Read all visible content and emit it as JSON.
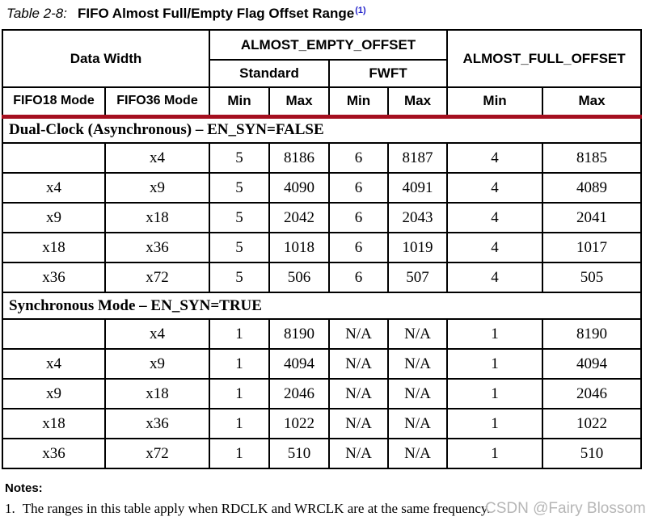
{
  "title": {
    "label": "Table 2-8:",
    "text": "FIFO Almost Full/Empty Flag Offset Range",
    "footnote_ref": "(1)"
  },
  "table": {
    "header": {
      "data_width": "Data Width",
      "almost_empty": "ALMOST_EMPTY_OFFSET",
      "almost_full": "ALMOST_FULL_OFFSET",
      "standard": "Standard",
      "fwft": "FWFT",
      "col_fifo18": "FIFO18 Mode",
      "col_fifo36": "FIFO36 Mode",
      "min": "Min",
      "max": "Max"
    },
    "sections": [
      {
        "label": "Dual-Clock (Asynchronous) – EN_SYN=FALSE",
        "rows": [
          [
            "",
            "x4",
            "5",
            "8186",
            "6",
            "8187",
            "4",
            "8185"
          ],
          [
            "x4",
            "x9",
            "5",
            "4090",
            "6",
            "4091",
            "4",
            "4089"
          ],
          [
            "x9",
            "x18",
            "5",
            "2042",
            "6",
            "2043",
            "4",
            "2041"
          ],
          [
            "x18",
            "x36",
            "5",
            "1018",
            "6",
            "1019",
            "4",
            "1017"
          ],
          [
            "x36",
            "x72",
            "5",
            "506",
            "6",
            "507",
            "4",
            "505"
          ]
        ]
      },
      {
        "label": "Synchronous Mode – EN_SYN=TRUE",
        "rows": [
          [
            "",
            "x4",
            "1",
            "8190",
            "N/A",
            "N/A",
            "1",
            "8190"
          ],
          [
            "x4",
            "x9",
            "1",
            "4094",
            "N/A",
            "N/A",
            "1",
            "4094"
          ],
          [
            "x9",
            "x18",
            "1",
            "2046",
            "N/A",
            "N/A",
            "1",
            "2046"
          ],
          [
            "x18",
            "x36",
            "1",
            "1022",
            "N/A",
            "N/A",
            "1",
            "1022"
          ],
          [
            "x36",
            "x72",
            "1",
            "510",
            "N/A",
            "N/A",
            "1",
            "510"
          ]
        ]
      }
    ]
  },
  "notes": {
    "heading": "Notes:",
    "items": [
      {
        "number": "1.",
        "text": "The ranges in this table apply when RDCLK and WRCLK are at the same frequency."
      }
    ]
  },
  "watermark": "CSDN @Fairy Blossom",
  "colors": {
    "divider_red": "#a50f1f",
    "footnote_blue": "#2525cc",
    "watermark_gray": "#b6b6b6"
  }
}
